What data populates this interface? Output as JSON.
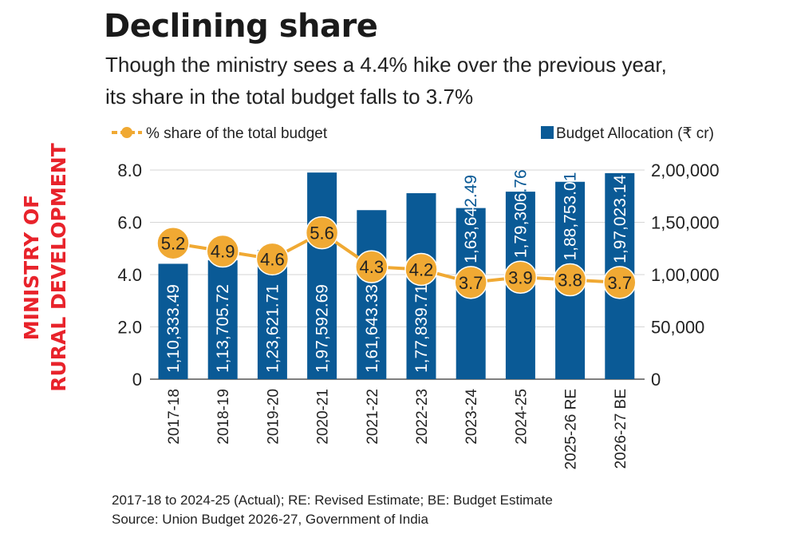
{
  "header": {
    "title": "Declining share",
    "subtitle_line1": "Though the ministry sees a 4.4% hike over the previous year,",
    "subtitle_line2": "its share in the total budget falls to 3.7%"
  },
  "side_label": {
    "line1": "MINISTRY OF",
    "line2": "RURAL DEVELOPMENT",
    "color": "#e8232b"
  },
  "footnotes": {
    "line1": "2017-18 to 2024-25 (Actual); RE: Revised Estimate; BE: Budget Estimate",
    "line2": "Source: Union Budget 2026-27, Government of India"
  },
  "chart_data": {
    "type": "bar+line",
    "categories": [
      "2017-18",
      "2018-19",
      "2019-20",
      "2020-21",
      "2021-22",
      "2022-23",
      "2023-24",
      "2024-25",
      "2025-26 RE",
      "2026-27 BE"
    ],
    "series": [
      {
        "name": "Budget Allocation (₹ cr)",
        "type": "bar",
        "axis": "right",
        "color": "#0a5a96",
        "values": [
          110333.49,
          113705.72,
          123621.71,
          197592.69,
          161643.33,
          177839.71,
          163642.49,
          179306.76,
          188753.01,
          197023.14
        ],
        "labels": [
          "1,10,333.49",
          "1,13,705.72",
          "1,23,621.71",
          "1,97,592.69",
          "1,61,643.33",
          "1,77,839.71",
          "1,63,642.49",
          "1,79,306.76",
          "1,88,753.01",
          "1,97,023.14"
        ]
      },
      {
        "name": "% share of the total budget",
        "type": "line",
        "axis": "left",
        "color": "#f0a933",
        "values": [
          5.2,
          4.9,
          4.6,
          5.6,
          4.3,
          4.2,
          3.7,
          3.9,
          3.8,
          3.7
        ],
        "labels": [
          "5.2",
          "4.9",
          "4.6",
          "5.6",
          "4.3",
          "4.2",
          "3.7",
          "3.9",
          "3.8",
          "3.7"
        ]
      }
    ],
    "left_axis": {
      "ylim": [
        0,
        8
      ],
      "ticks": [
        0,
        2,
        4,
        6,
        8
      ],
      "tick_labels": [
        "0",
        "2.0",
        "4.0",
        "6.0",
        "8.0"
      ]
    },
    "right_axis": {
      "ylim": [
        0,
        200000
      ],
      "ticks": [
        0,
        50000,
        100000,
        150000,
        200000
      ],
      "tick_labels": [
        "0",
        "50,000",
        "1,00,000",
        "1,50,000",
        "2,00,000"
      ]
    },
    "legend": {
      "placement": "top",
      "entries": [
        "% share of the total budget",
        "Budget Allocation (₹ cr)"
      ]
    },
    "grid": true
  }
}
